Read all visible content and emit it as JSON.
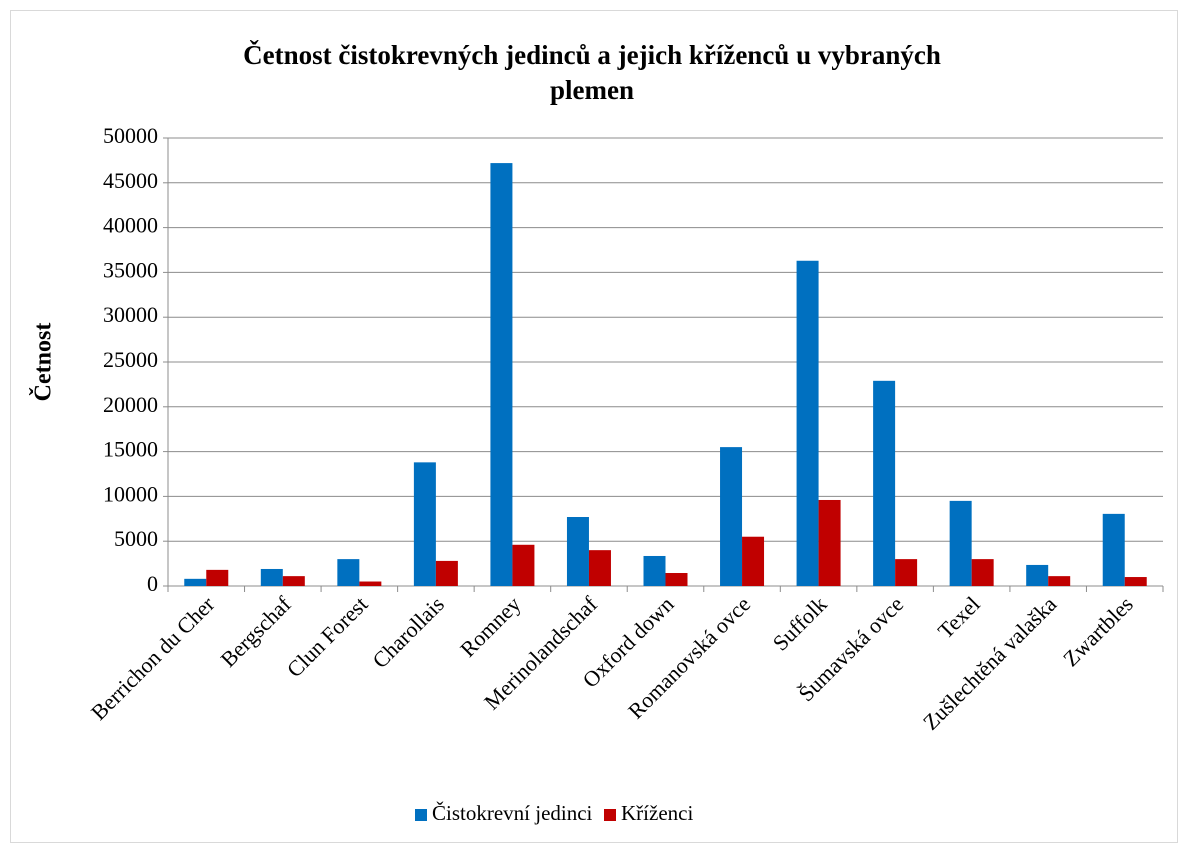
{
  "chart_data": {
    "type": "bar",
    "title": "Četnost čistokrevných jedinců a jejich kříženců u vybraných plemen",
    "y_label": "Četnost",
    "categories": [
      "Berrichon du Cher",
      "Bergschaf",
      "Clun Forest",
      "Charollais",
      "Romney",
      "Merinolandschaf",
      "Oxford down",
      "Romanovská ovce",
      "Suffolk",
      "Šumavská ovce",
      "Texel",
      "Zušlechtěná valaška",
      "Zwartbles"
    ],
    "series": [
      {
        "name": "Čistokrevní jedinci",
        "color": "#0070c0",
        "values": [
          800,
          1900,
          3000,
          13800,
          47200,
          7700,
          3350,
          15500,
          36300,
          22900,
          9500,
          2350,
          8050
        ]
      },
      {
        "name": "Kříženci",
        "color": "#c00000",
        "values": [
          1800,
          1100,
          500,
          2800,
          4600,
          4000,
          1450,
          5500,
          9600,
          3000,
          3000,
          1100,
          1000
        ]
      }
    ],
    "ylim": [
      0,
      50000
    ],
    "yticks": [
      0,
      5000,
      10000,
      15000,
      20000,
      25000,
      30000,
      35000,
      40000,
      45000,
      50000
    ],
    "grid": true,
    "legend": "bottom"
  }
}
